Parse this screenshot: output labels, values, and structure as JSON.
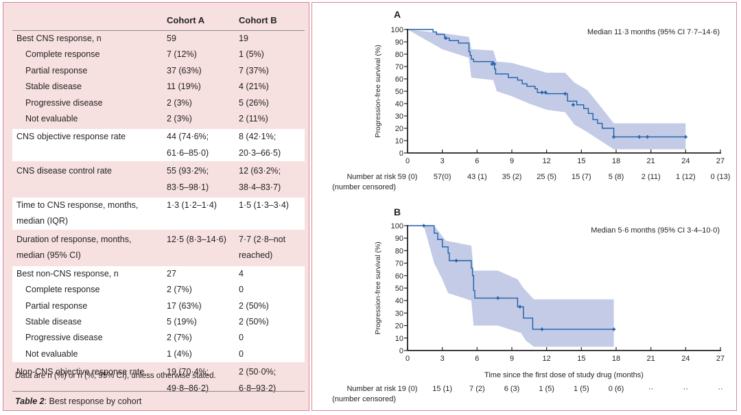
{
  "table": {
    "headers": [
      "",
      "Cohort A",
      "Cohort B"
    ],
    "sections": [
      {
        "rows": [
          {
            "label": "Best CNS response, n",
            "a": "59",
            "b": "19",
            "indent": false
          },
          {
            "label": "Complete response",
            "a": "7 (12%)",
            "b": "1 (5%)",
            "indent": true
          },
          {
            "label": "Partial response",
            "a": "37 (63%)",
            "b": "7 (37%)",
            "indent": true
          },
          {
            "label": "Stable disease",
            "a": "11 (19%)",
            "b": "4 (21%)",
            "indent": true
          },
          {
            "label": "Progressive disease",
            "a": "2 (3%)",
            "b": "5 (26%)",
            "indent": true
          },
          {
            "label": "Not evaluable",
            "a": "2 (3%)",
            "b": "2 (11%)",
            "indent": true
          }
        ]
      },
      {
        "rows": [
          {
            "label": "CNS objective response rate",
            "label2": "",
            "a": "44 (74·6%;",
            "a2": "61·6–85·0)",
            "b": "8 (42·1%;",
            "b2": "20·3–66·5)"
          }
        ]
      },
      {
        "rows": [
          {
            "label": "CNS disease control rate",
            "label2": "",
            "a": "55 (93·2%;",
            "a2": "83·5–98·1)",
            "b": "12 (63·2%;",
            "b2": "38·4–83·7)"
          }
        ]
      },
      {
        "rows": [
          {
            "label": "Time to CNS response, months,",
            "label2": "median (IQR)",
            "a": "1·3 (1·2–1·4)",
            "a2": "",
            "b": "1·5 (1·3–3·4)",
            "b2": ""
          }
        ]
      },
      {
        "rows": [
          {
            "label": "Duration of response, months,",
            "label2": "median (95% CI)",
            "a": "12·5 (8·3–14·6)",
            "a2": "",
            "b": "7·7 (2·8–not",
            "b2": "reached)"
          }
        ]
      },
      {
        "rows": [
          {
            "label": "Best non-CNS response, n",
            "a": "27",
            "b": "4",
            "indent": false
          },
          {
            "label": "Complete response",
            "a": "2 (7%)",
            "b": "0",
            "indent": true
          },
          {
            "label": "Partial response",
            "a": "17 (63%)",
            "b": "2 (50%)",
            "indent": true
          },
          {
            "label": "Stable disease",
            "a": "5 (19%)",
            "b": "2 (50%)",
            "indent": true
          },
          {
            "label": "Progressive disease",
            "a": "2 (7%)",
            "b": "0",
            "indent": true
          },
          {
            "label": "Not evaluable",
            "a": "1 (4%)",
            "b": "0",
            "indent": true
          }
        ]
      },
      {
        "rows": [
          {
            "label": "Non-CNS objective response rate",
            "label2": "",
            "a": "19 (70·4%;",
            "a2": "49·8–86·2)",
            "b": "2 (50·0%;",
            "b2": "6·8–93·2)"
          }
        ]
      }
    ],
    "note": "Data are n (%) or n (%; 95% CI), unless otherwise stated.",
    "caption_label": "Table 2",
    "caption_text": ": Best response by cohort"
  },
  "colors": {
    "line": "#1f5fa8",
    "ci_band": "#c3cbe6",
    "panel_border": "#d9849a",
    "table_bg": "#f6e0e0"
  },
  "chart_data": [
    {
      "type": "line",
      "panel": "A",
      "title": "A",
      "annotation": "Median 11·3 months (95% CI 7·7–14·6)",
      "ylabel": "Progression-free survival (%)",
      "xlabel": "",
      "xlim": [
        0,
        27
      ],
      "ylim": [
        0,
        100
      ],
      "xticks": [
        0,
        3,
        6,
        9,
        12,
        15,
        18,
        21,
        24,
        27
      ],
      "yticks": [
        0,
        10,
        20,
        30,
        40,
        50,
        60,
        70,
        80,
        90,
        100
      ],
      "step_x": [
        0,
        2.2,
        2.5,
        3.2,
        3.6,
        4.4,
        5.2,
        5.3,
        5.4,
        5.5,
        5.7,
        7.4,
        7.5,
        7.6,
        7.8,
        8.7,
        9.5,
        9.9,
        10.3,
        11.0,
        11.2,
        12.0,
        13.6,
        13.8,
        14.6,
        15.2,
        15.6,
        16.0,
        16.4,
        16.8,
        17.8,
        24.0
      ],
      "step_y": [
        100,
        98,
        96,
        93,
        91,
        89,
        89,
        82,
        79,
        76,
        74,
        72,
        68,
        64,
        64,
        61,
        59,
        56,
        54,
        52,
        49,
        48,
        48,
        42,
        39,
        36,
        32,
        27,
        24,
        20,
        13,
        13
      ],
      "censored": [
        {
          "x": 3.3,
          "y": 93
        },
        {
          "x": 7.3,
          "y": 72
        },
        {
          "x": 7.5,
          "y": 72
        },
        {
          "x": 11.6,
          "y": 49
        },
        {
          "x": 11.9,
          "y": 49
        },
        {
          "x": 13.6,
          "y": 48
        },
        {
          "x": 14.3,
          "y": 39
        },
        {
          "x": 17.8,
          "y": 13
        },
        {
          "x": 20.0,
          "y": 13
        },
        {
          "x": 20.7,
          "y": 13
        },
        {
          "x": 24.0,
          "y": 13
        }
      ],
      "ci_upper": [
        [
          0,
          100
        ],
        [
          3,
          97
        ],
        [
          5.3,
          94
        ],
        [
          5.5,
          84
        ],
        [
          7.4,
          83
        ],
        [
          7.7,
          74
        ],
        [
          9,
          73
        ],
        [
          10.5,
          69
        ],
        [
          12,
          65
        ],
        [
          13.6,
          65
        ],
        [
          14.4,
          57
        ],
        [
          15.5,
          51
        ],
        [
          16.8,
          36
        ],
        [
          17.8,
          24
        ],
        [
          24,
          24
        ]
      ],
      "ci_lower": [
        [
          0,
          100
        ],
        [
          3,
          84
        ],
        [
          5.3,
          77
        ],
        [
          5.5,
          61
        ],
        [
          7.4,
          59
        ],
        [
          7.7,
          50
        ],
        [
          9,
          46
        ],
        [
          10.5,
          40
        ],
        [
          12,
          35
        ],
        [
          13.6,
          33
        ],
        [
          14.4,
          23
        ],
        [
          15.5,
          17
        ],
        [
          16.8,
          9
        ],
        [
          17.8,
          3
        ],
        [
          24,
          3
        ]
      ],
      "risk_table": {
        "label1": "Number at risk",
        "label2": "(number censored)",
        "values": [
          "59 (0)",
          "57(0)",
          "43 (1)",
          "35 (2)",
          "25 (5)",
          "15 (7)",
          "5 (8)",
          "2 (11)",
          "1 (12)",
          "0 (13)"
        ]
      }
    },
    {
      "type": "line",
      "panel": "B",
      "title": "B",
      "annotation": "Median 5·6 months (95% CI 3·4–10·0)",
      "ylabel": "Progression-free survival (%)",
      "xlabel": "Time since the first dose of study drug (months)",
      "xlim": [
        0,
        27
      ],
      "ylim": [
        0,
        100
      ],
      "xticks": [
        0,
        3,
        6,
        9,
        12,
        15,
        18,
        21,
        24,
        27
      ],
      "yticks": [
        0,
        10,
        20,
        30,
        40,
        50,
        60,
        70,
        80,
        90,
        100
      ],
      "step_x": [
        0,
        2.3,
        2.6,
        3.0,
        3.5,
        3.6,
        5.5,
        5.6,
        5.7,
        5.8,
        9.5,
        10.0,
        10.8,
        17.8
      ],
      "step_y": [
        100,
        94,
        89,
        83,
        78,
        72,
        66,
        60,
        48,
        42,
        35,
        26,
        17,
        17
      ],
      "censored": [
        {
          "x": 1.4,
          "y": 100
        },
        {
          "x": 4.2,
          "y": 72
        },
        {
          "x": 7.8,
          "y": 42
        },
        {
          "x": 9.7,
          "y": 35
        },
        {
          "x": 11.6,
          "y": 17
        },
        {
          "x": 17.8,
          "y": 17
        }
      ],
      "ci_upper": [
        [
          0,
          100
        ],
        [
          2.3,
          100
        ],
        [
          3.3,
          88
        ],
        [
          5.5,
          84
        ],
        [
          5.7,
          64
        ],
        [
          7.8,
          64
        ],
        [
          9.5,
          57
        ],
        [
          10,
          50
        ],
        [
          10.9,
          41
        ],
        [
          17.8,
          41
        ]
      ],
      "ci_lower": [
        [
          0,
          100
        ],
        [
          1.4,
          100
        ],
        [
          2.3,
          70
        ],
        [
          3,
          57
        ],
        [
          3.5,
          46
        ],
        [
          5.5,
          40
        ],
        [
          5.7,
          20
        ],
        [
          7.8,
          20
        ],
        [
          9.8,
          14
        ],
        [
          10.2,
          8
        ],
        [
          10.9,
          3
        ],
        [
          17.8,
          3
        ]
      ],
      "risk_table": {
        "label1": "Number at risk",
        "label2": "(number censored)",
        "values": [
          "19 (0)",
          "15 (1)",
          "7 (2)",
          "6 (3)",
          "1 (5)",
          "1 (5)",
          "0 (6)",
          "··",
          "··",
          "··"
        ]
      }
    }
  ]
}
